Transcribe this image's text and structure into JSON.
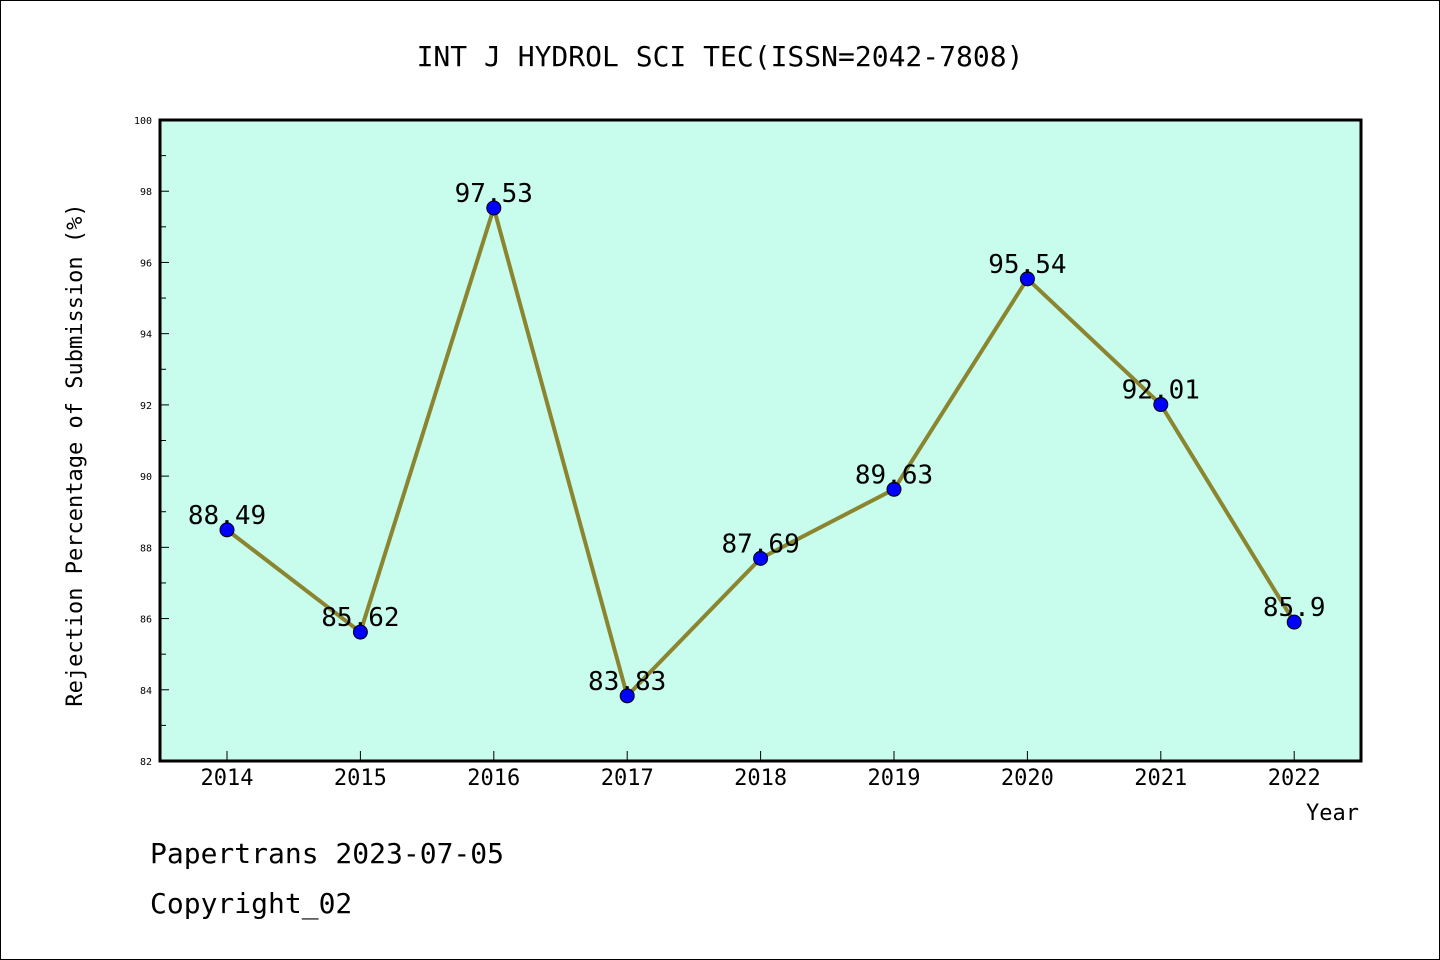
{
  "chart_data": {
    "type": "line",
    "title": "INT J HYDROL SCI TEC(ISSN=2042-7808)",
    "xlabel": "Year",
    "ylabel": "Rejection Percentage of Submission (%)",
    "categories": [
      "2014",
      "2015",
      "2016",
      "2017",
      "2018",
      "2019",
      "2020",
      "2021",
      "2022"
    ],
    "values": [
      88.49,
      85.62,
      97.53,
      83.83,
      87.69,
      89.63,
      95.54,
      92.01,
      85.9
    ],
    "data_labels": [
      "88.49",
      "85.62",
      "97.53",
      "83.83",
      "87.69",
      "89.63",
      "95.54",
      "92.01",
      "85.9"
    ],
    "ylim": [
      82,
      100
    ],
    "y_ticks": [
      82,
      84,
      86,
      88,
      90,
      92,
      94,
      96,
      98,
      100
    ],
    "grid": false,
    "colors": {
      "plot_background": "#c8fcec",
      "line": "#8b8530",
      "marker": "#0000ff"
    }
  },
  "footer": {
    "line1": "Papertrans 2023-07-05",
    "line2": "Copyright_02"
  }
}
